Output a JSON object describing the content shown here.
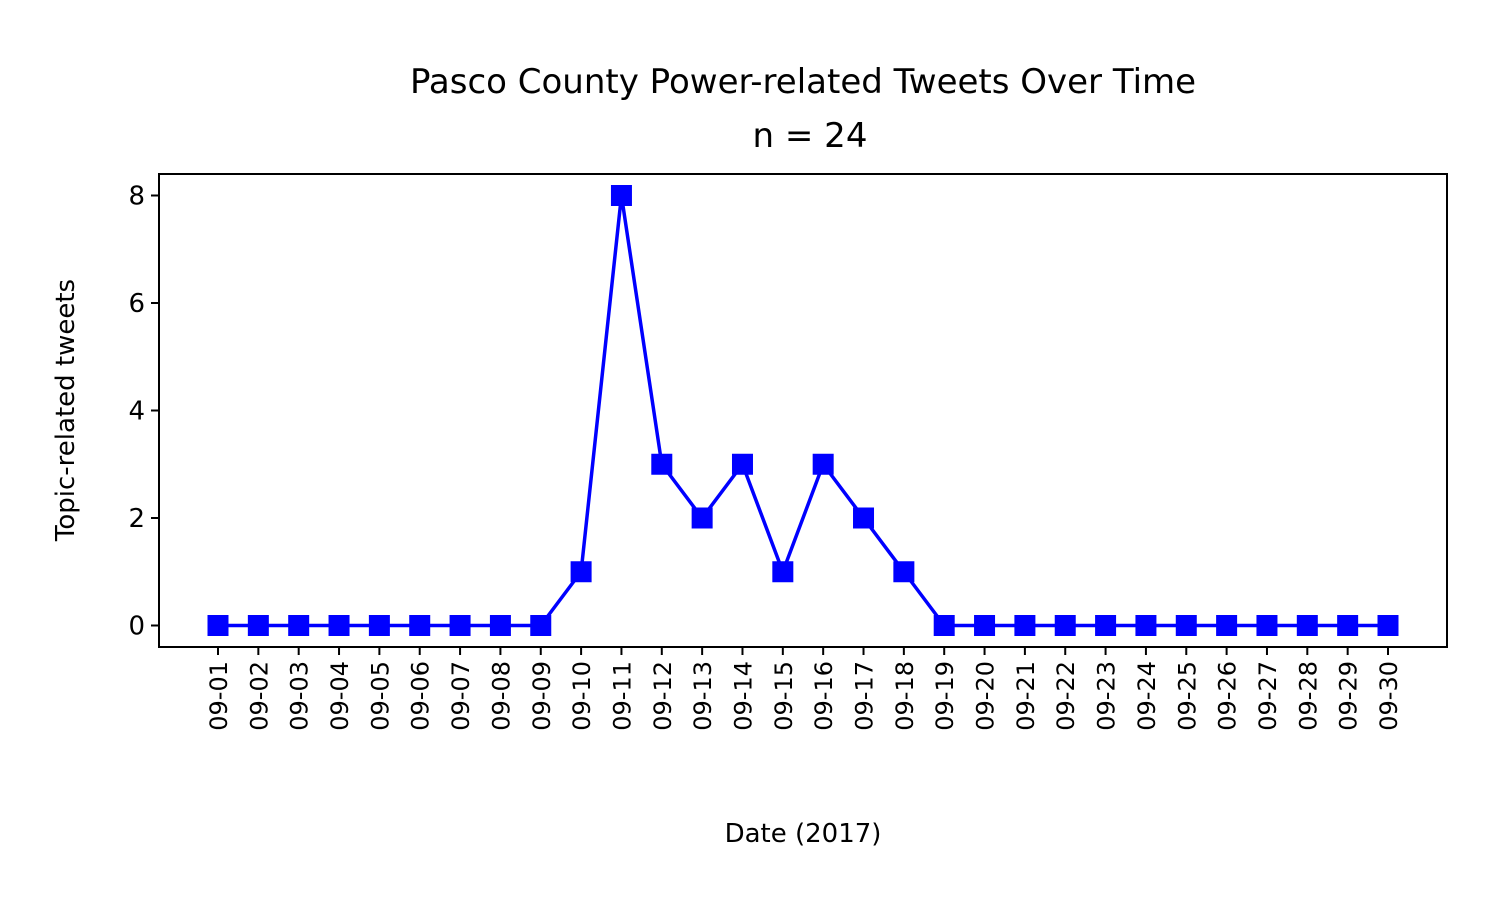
{
  "chart_data": {
    "type": "line",
    "title": "Pasco County Power-related Tweets Over Time",
    "subtitle": "n = 24",
    "xlabel": "Date (2017)",
    "ylabel": "Topic-related tweets",
    "categories": [
      "09-01",
      "09-02",
      "09-03",
      "09-04",
      "09-05",
      "09-06",
      "09-07",
      "09-08",
      "09-09",
      "09-10",
      "09-11",
      "09-12",
      "09-13",
      "09-14",
      "09-15",
      "09-16",
      "09-17",
      "09-18",
      "09-19",
      "09-20",
      "09-21",
      "09-22",
      "09-23",
      "09-24",
      "09-25",
      "09-26",
      "09-27",
      "09-28",
      "09-29",
      "09-30"
    ],
    "values": [
      0,
      0,
      0,
      0,
      0,
      0,
      0,
      0,
      0,
      1,
      8,
      3,
      2,
      3,
      1,
      3,
      2,
      1,
      0,
      0,
      0,
      0,
      0,
      0,
      0,
      0,
      0,
      0,
      0,
      0
    ],
    "ylim": [
      -0.4,
      8.4
    ],
    "yticks": [
      0,
      2,
      4,
      6,
      8
    ],
    "marker": "square",
    "color": "#0000ff",
    "grid": false,
    "legend": "none"
  }
}
